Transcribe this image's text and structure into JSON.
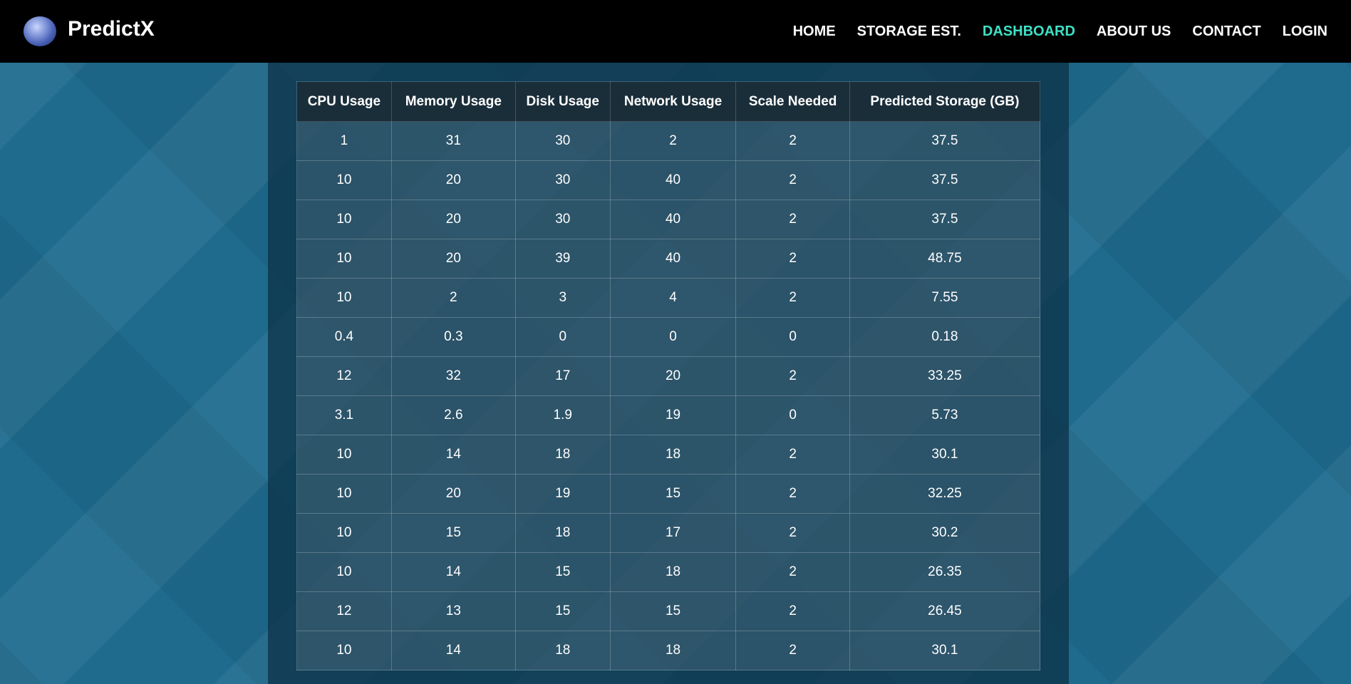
{
  "nav": {
    "brand": "PredictX",
    "items": [
      "HOME",
      "STORAGE EST.",
      "DASHBOARD",
      "ABOUT US",
      "CONTACT",
      "LOGIN"
    ],
    "active": 2
  },
  "table": {
    "headers": [
      "CPU Usage",
      "Memory Usage",
      "Disk Usage",
      "Network Usage",
      "Scale Needed",
      "Predicted Storage (GB)"
    ],
    "rows": [
      [
        "1",
        "31",
        "30",
        "2",
        "2",
        "37.5"
      ],
      [
        "10",
        "20",
        "30",
        "40",
        "2",
        "37.5"
      ],
      [
        "10",
        "20",
        "30",
        "40",
        "2",
        "37.5"
      ],
      [
        "10",
        "20",
        "39",
        "40",
        "2",
        "48.75"
      ],
      [
        "10",
        "2",
        "3",
        "4",
        "2",
        "7.55"
      ],
      [
        "0.4",
        "0.3",
        "0",
        "0",
        "0",
        "0.18"
      ],
      [
        "12",
        "32",
        "17",
        "20",
        "2",
        "33.25"
      ],
      [
        "3.1",
        "2.6",
        "1.9",
        "19",
        "0",
        "5.73"
      ],
      [
        "10",
        "14",
        "18",
        "18",
        "2",
        "30.1"
      ],
      [
        "10",
        "20",
        "19",
        "15",
        "2",
        "32.25"
      ],
      [
        "10",
        "15",
        "18",
        "17",
        "2",
        "30.2"
      ],
      [
        "10",
        "14",
        "15",
        "18",
        "2",
        "26.35"
      ],
      [
        "12",
        "13",
        "15",
        "15",
        "2",
        "26.45"
      ],
      [
        "10",
        "14",
        "18",
        "18",
        "2",
        "30.1"
      ]
    ]
  }
}
